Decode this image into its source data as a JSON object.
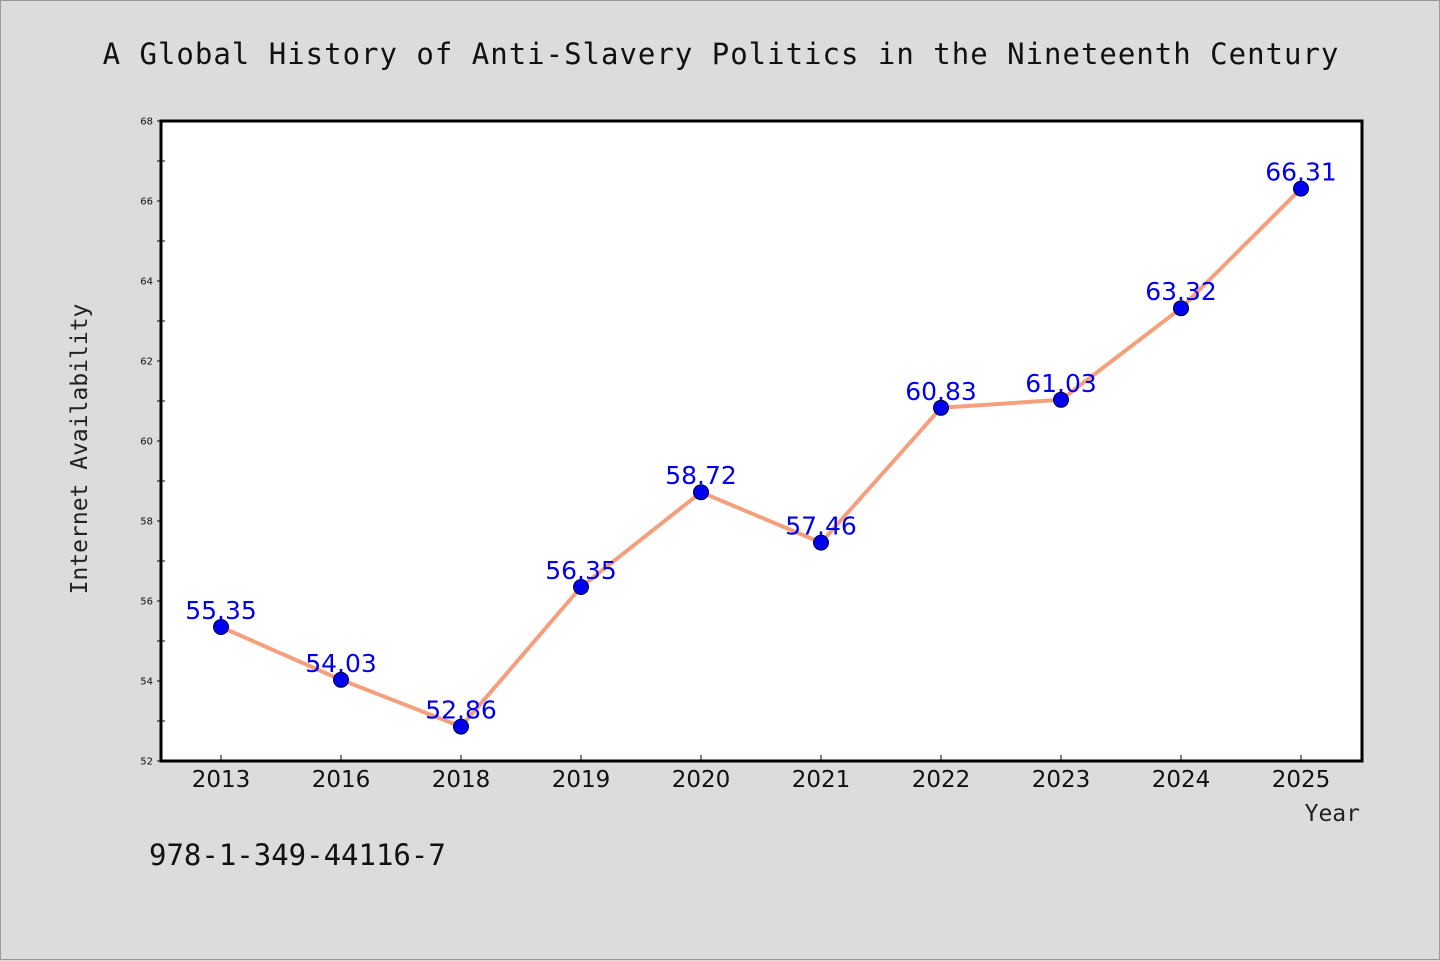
{
  "chart_data": {
    "type": "line",
    "title": "A Global History of Anti-Slavery Politics in the Nineteenth Century",
    "xlabel": "Year",
    "ylabel": "Internet Availability",
    "categories": [
      "2013",
      "2016",
      "2018",
      "2019",
      "2020",
      "2021",
      "2022",
      "2023",
      "2024",
      "2025"
    ],
    "series": [
      {
        "values": [
          55.35,
          54.03,
          52.86,
          56.35,
          58.72,
          57.46,
          60.83,
          61.03,
          63.32,
          66.31
        ],
        "labels": [
          "55.35",
          "54.03",
          "52.86",
          "56.35",
          "58.72",
          "57.46",
          "60.83",
          "61.03",
          "63.32",
          "66.31"
        ]
      }
    ],
    "ylim": [
      52,
      68
    ],
    "yticks": [
      "52",
      "54",
      "56",
      "58",
      "60",
      "62",
      "64",
      "66",
      "68"
    ],
    "grid": false,
    "legend": "none",
    "colors": {
      "line": "#f4a07e",
      "marker": "#0000ee",
      "data_label": "#0000ee",
      "plot_background": "#ffffff",
      "page_background": "#dcdcdc"
    }
  },
  "footer": {
    "isbn": "978-1-349-44116-7"
  }
}
